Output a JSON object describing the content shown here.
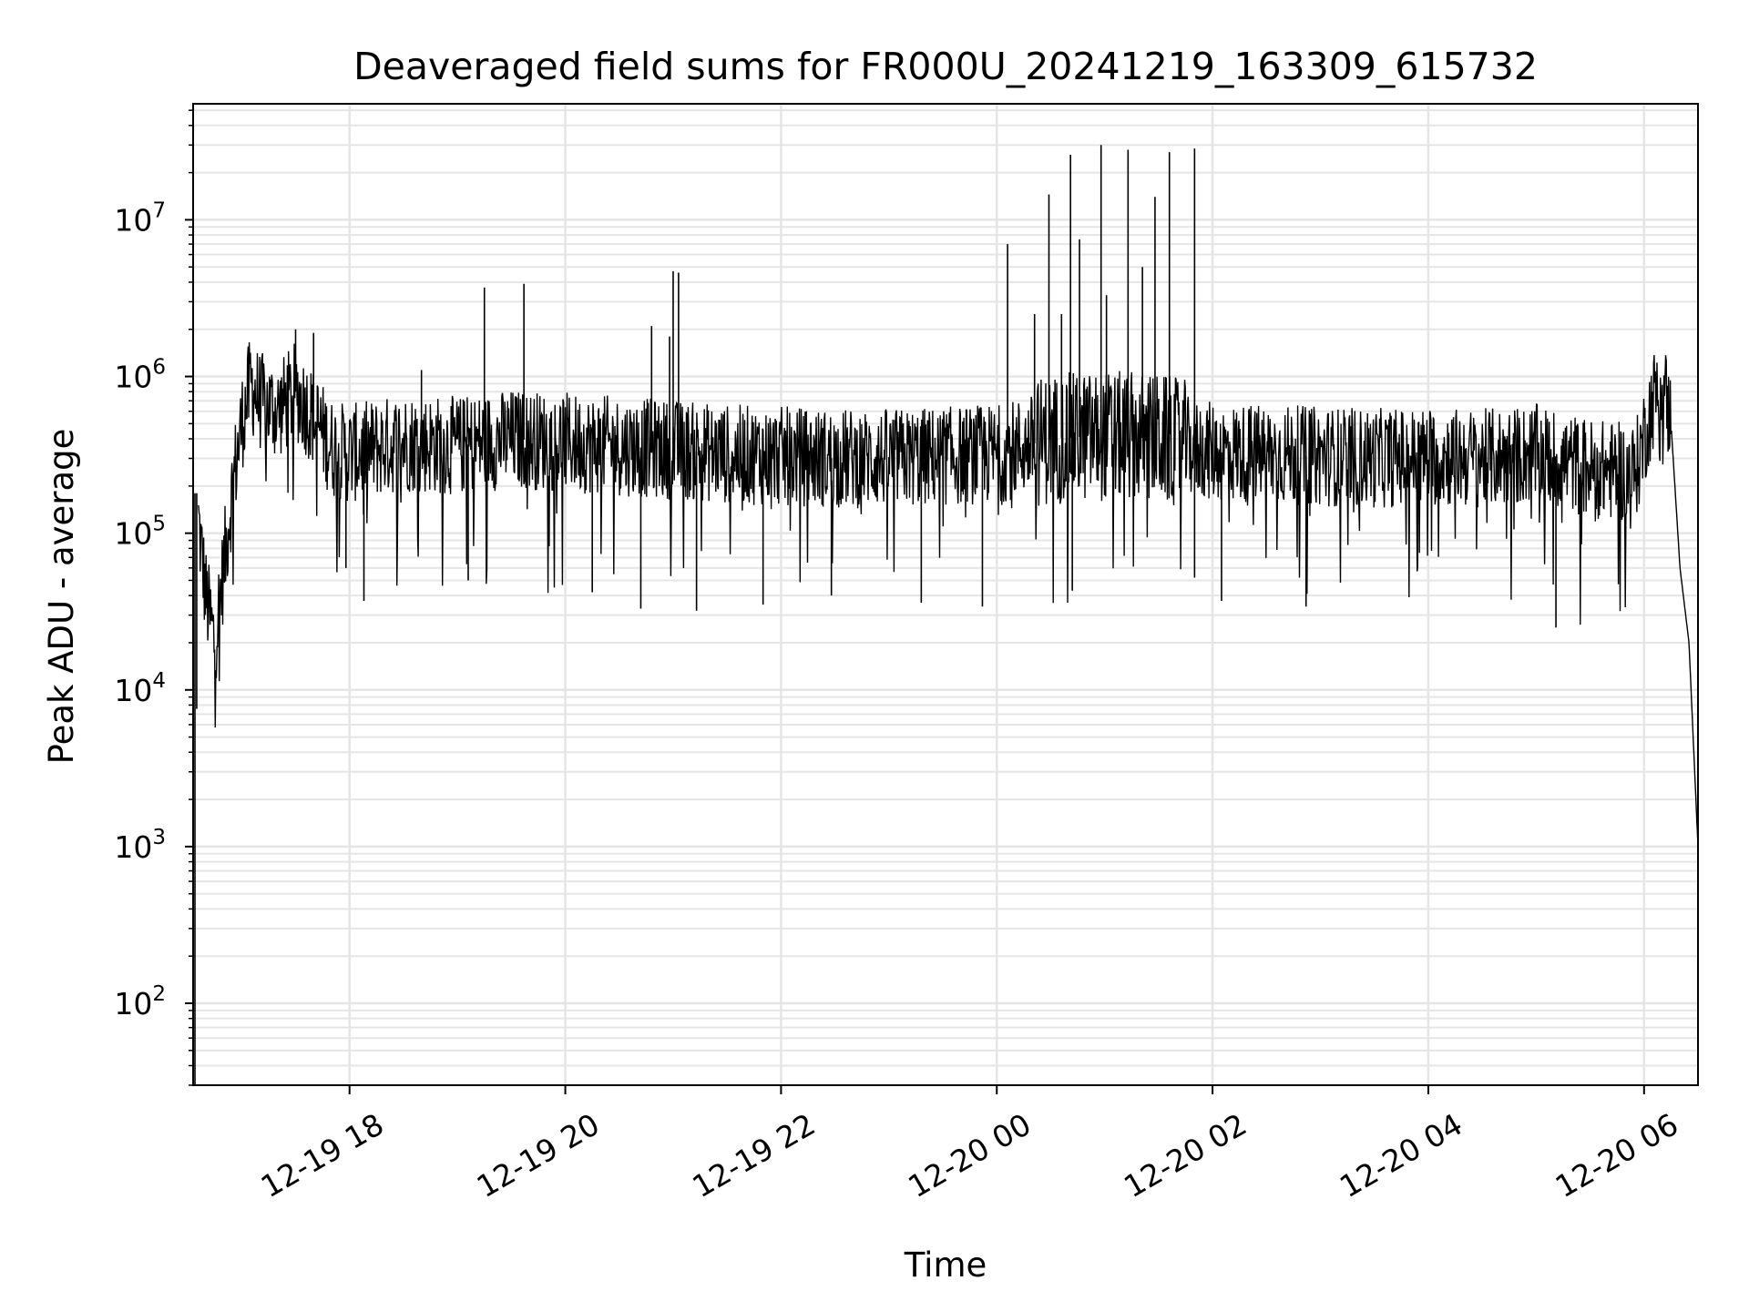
{
  "chart_data": {
    "type": "line",
    "title": "Deaveraged field sums for FR000U_20241219_163309_615732",
    "xlabel": "Time",
    "ylabel": "Peak ADU - average",
    "yscale": "log",
    "grid": true,
    "line_color": "#000000",
    "grid_color": "#e5e5e5",
    "xlim": [
      "2024-12-19 16:33",
      "2024-12-20 06:30"
    ],
    "ylim": [
      30,
      55000000
    ],
    "x_ticks": [
      {
        "t": "2024-12-19 18:00",
        "label": "12-19 18"
      },
      {
        "t": "2024-12-19 20:00",
        "label": "12-19 20"
      },
      {
        "t": "2024-12-19 22:00",
        "label": "12-19 22"
      },
      {
        "t": "2024-12-20 00:00",
        "label": "12-20 00"
      },
      {
        "t": "2024-12-20 02:00",
        "label": "12-20 02"
      },
      {
        "t": "2024-12-20 04:00",
        "label": "12-20 04"
      },
      {
        "t": "2024-12-20 06:00",
        "label": "12-20 06"
      }
    ],
    "y_ticks": [
      {
        "value": 100,
        "base": "10",
        "exp": "2"
      },
      {
        "value": 1000,
        "base": "10",
        "exp": "3"
      },
      {
        "value": 10000,
        "base": "10",
        "exp": "4"
      },
      {
        "value": 100000,
        "base": "10",
        "exp": "5"
      },
      {
        "value": 1000000,
        "base": "10",
        "exp": "6"
      },
      {
        "value": 10000000,
        "base": "10",
        "exp": "7"
      }
    ],
    "series": [
      {
        "points": [
          [
            "2024-12-19 16:33",
            30
          ],
          [
            "2024-12-19 16:36",
            120000
          ],
          [
            "2024-12-19 16:40",
            40000
          ],
          [
            "2024-12-19 16:45",
            20000
          ],
          [
            "2024-12-19 16:50",
            60000
          ],
          [
            "2024-12-19 16:55",
            200000
          ],
          [
            "2024-12-19 17:00",
            500000
          ],
          [
            "2024-12-19 17:05",
            900000
          ],
          [
            "2024-12-19 17:10",
            700000
          ],
          [
            "2024-12-19 17:20",
            600000
          ],
          [
            "2024-12-19 17:30",
            800000
          ],
          [
            "2024-12-19 17:40",
            550000
          ],
          [
            "2024-12-19 17:50",
            350000
          ],
          [
            "2024-12-19 18:00",
            320000
          ],
          [
            "2024-12-19 18:30",
            380000
          ],
          [
            "2024-12-19 19:00",
            360000
          ],
          [
            "2024-12-19 19:30",
            400000
          ],
          [
            "2024-12-19 20:00",
            380000
          ],
          [
            "2024-12-19 20:30",
            360000
          ],
          [
            "2024-12-19 21:00",
            340000
          ],
          [
            "2024-12-19 21:30",
            320000
          ],
          [
            "2024-12-19 22:00",
            310000
          ],
          [
            "2024-12-19 22:30",
            300000
          ],
          [
            "2024-12-19 23:00",
            300000
          ],
          [
            "2024-12-19 23:30",
            310000
          ],
          [
            "2024-12-20 00:00",
            320000
          ],
          [
            "2024-12-20 00:30",
            400000
          ],
          [
            "2024-12-20 01:00",
            420000
          ],
          [
            "2024-12-20 01:30",
            400000
          ],
          [
            "2024-12-20 02:00",
            330000
          ],
          [
            "2024-12-20 02:30",
            320000
          ],
          [
            "2024-12-20 03:00",
            310000
          ],
          [
            "2024-12-20 03:30",
            300000
          ],
          [
            "2024-12-20 04:00",
            310000
          ],
          [
            "2024-12-20 04:30",
            300000
          ],
          [
            "2024-12-20 05:00",
            320000
          ],
          [
            "2024-12-20 05:30",
            260000
          ],
          [
            "2024-12-20 05:55",
            240000
          ],
          [
            "2024-12-20 06:05",
            700000
          ],
          [
            "2024-12-20 06:10",
            950000
          ],
          [
            "2024-12-20 06:15",
            500000
          ],
          [
            "2024-12-20 06:20",
            60000
          ],
          [
            "2024-12-20 06:25",
            20000
          ],
          [
            "2024-12-20 06:30",
            1000
          ]
        ]
      }
    ],
    "spikes": [
      [
        "2024-12-19 16:35",
        180000
      ],
      [
        "2024-12-19 17:30",
        2000000
      ],
      [
        "2024-12-19 17:40",
        1900000
      ],
      [
        "2024-12-19 18:40",
        1100000
      ],
      [
        "2024-12-19 19:15",
        3700000
      ],
      [
        "2024-12-19 19:37",
        3900000
      ],
      [
        "2024-12-19 20:48",
        2100000
      ],
      [
        "2024-12-19 20:58",
        1800000
      ],
      [
        "2024-12-19 21:00",
        4700000
      ],
      [
        "2024-12-19 21:03",
        4600000
      ],
      [
        "2024-12-20 00:06",
        7000000
      ],
      [
        "2024-12-20 00:21",
        2500000
      ],
      [
        "2024-12-20 00:29",
        14500000
      ],
      [
        "2024-12-20 00:36",
        2500000
      ],
      [
        "2024-12-20 00:41",
        26000000
      ],
      [
        "2024-12-20 00:46",
        7500000
      ],
      [
        "2024-12-20 00:58",
        30000000
      ],
      [
        "2024-12-20 01:01",
        3300000
      ],
      [
        "2024-12-20 01:13",
        28000000
      ],
      [
        "2024-12-20 01:21",
        5000000
      ],
      [
        "2024-12-20 01:28",
        14000000
      ],
      [
        "2024-12-20 01:36",
        27000000
      ],
      [
        "2024-12-20 01:50",
        28500000
      ]
    ],
    "dips": [
      [
        "2024-12-19 17:58",
        60000
      ],
      [
        "2024-12-19 18:08",
        37000
      ],
      [
        "2024-12-19 19:06",
        50000
      ],
      [
        "2024-12-19 20:15",
        42000
      ],
      [
        "2024-12-19 20:42",
        33000
      ],
      [
        "2024-12-19 21:13",
        32000
      ],
      [
        "2024-12-19 21:50",
        35000
      ],
      [
        "2024-12-19 22:28",
        40000
      ],
      [
        "2024-12-19 23:18",
        36000
      ],
      [
        "2024-12-19 23:52",
        34000
      ],
      [
        "2024-12-20 00:42",
        43000
      ],
      [
        "2024-12-20 01:50",
        52000
      ],
      [
        "2024-12-20 02:05",
        37000
      ],
      [
        "2024-12-20 02:52",
        34000
      ],
      [
        "2024-12-20 05:11",
        25000
      ]
    ]
  }
}
